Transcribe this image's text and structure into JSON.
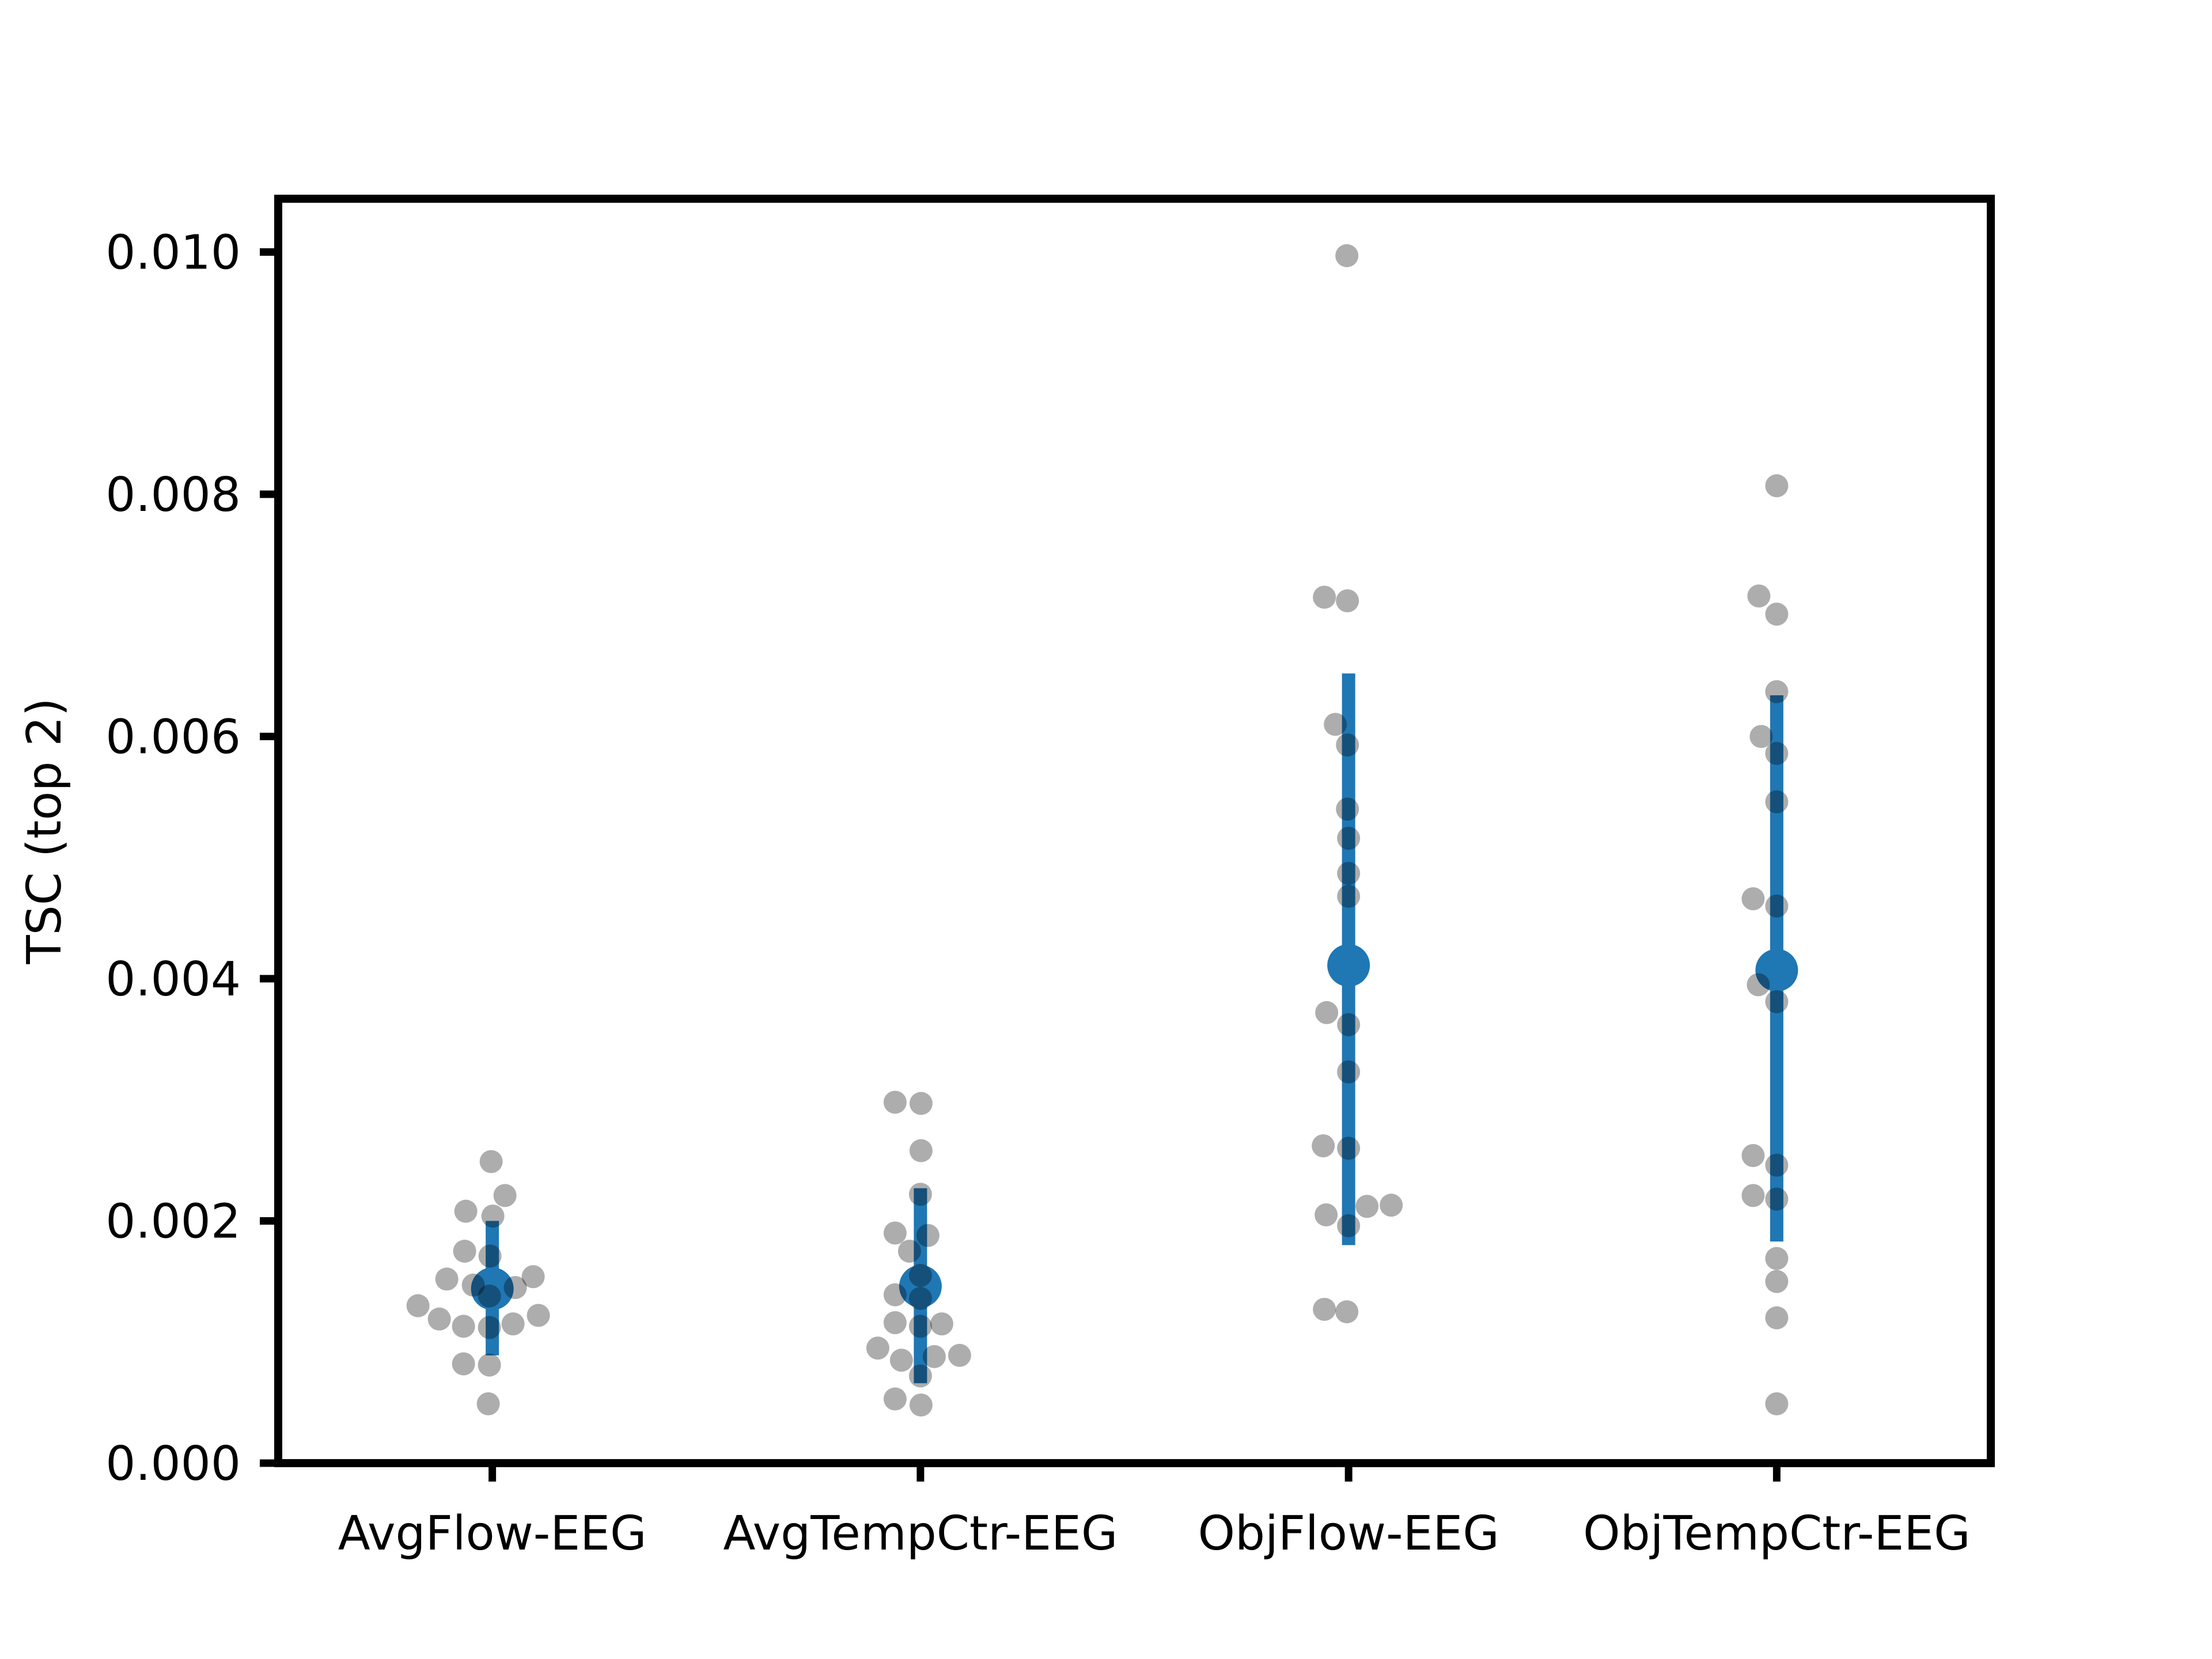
{
  "figure": {
    "background": "#ffffff"
  },
  "chart_data": {
    "type": "scatter",
    "subtype": "strip-plot-with-mean-and-ci",
    "title": "",
    "xlabel": "",
    "ylabel": "TSC (top 2)",
    "categories": [
      "AvgFlow-EEG",
      "AvgTempCtr-EEG",
      "ObjFlow-EEG",
      "ObjTempCtr-EEG"
    ],
    "ylim": [
      0,
      0.01044
    ],
    "yticks": [
      0,
      0.002,
      0.004,
      0.006,
      0.008,
      0.01
    ],
    "ytick_labels": [
      "0.000",
      "0.002",
      "0.004",
      "0.006",
      "0.008",
      "0.010"
    ],
    "grid": false,
    "legend_position": "none",
    "colors": {
      "mean_marker": "#1f77b4",
      "error_bar": "#1f77b4",
      "data_points": "#000000",
      "data_point_opacity": 0.32,
      "axis": "#000000"
    },
    "series": [
      {
        "name": "AvgFlow-EEG",
        "mean": 0.00144,
        "ci_low": 0.00089,
        "ci_high": 0.002,
        "points": [
          {
            "dx": -2,
            "y": 0.00249
          },
          {
            "dx": 22,
            "y": 0.00221
          },
          {
            "dx": -46,
            "y": 0.00208
          },
          {
            "dx": 1,
            "y": 0.00204
          },
          {
            "dx": -48,
            "y": 0.00175
          },
          {
            "dx": -4,
            "y": 0.00171
          },
          {
            "dx": 71,
            "y": 0.00154
          },
          {
            "dx": -79,
            "y": 0.00152
          },
          {
            "dx": -33,
            "y": 0.00147
          },
          {
            "dx": 40,
            "y": 0.00145
          },
          {
            "dx": -5,
            "y": 0.00138
          },
          {
            "dx": -129,
            "y": 0.0013
          },
          {
            "dx": 80,
            "y": 0.00122
          },
          {
            "dx": -92,
            "y": 0.00119
          },
          {
            "dx": 36,
            "y": 0.00115
          },
          {
            "dx": -50,
            "y": 0.00113
          },
          {
            "dx": -5,
            "y": 0.00112
          },
          {
            "dx": -50,
            "y": 0.00082
          },
          {
            "dx": -5,
            "y": 0.00081
          },
          {
            "dx": -7,
            "y": 0.00049
          }
        ]
      },
      {
        "name": "AvgTempCtr-EEG",
        "mean": 0.00146,
        "ci_low": 0.00066,
        "ci_high": 0.00227,
        "points": [
          {
            "dx": -44,
            "y": 0.00298
          },
          {
            "dx": 1,
            "y": 0.00297
          },
          {
            "dx": 1,
            "y": 0.00258
          },
          {
            "dx": 0,
            "y": 0.00222
          },
          {
            "dx": -44,
            "y": 0.0019
          },
          {
            "dx": 13,
            "y": 0.00188
          },
          {
            "dx": -19,
            "y": 0.00175
          },
          {
            "dx": 0,
            "y": 0.00155
          },
          {
            "dx": -44,
            "y": 0.00139
          },
          {
            "dx": 0,
            "y": 0.00136
          },
          {
            "dx": -44,
            "y": 0.00116
          },
          {
            "dx": 37,
            "y": 0.00115
          },
          {
            "dx": 0,
            "y": 0.00113
          },
          {
            "dx": -74,
            "y": 0.00095
          },
          {
            "dx": 68,
            "y": 0.00089
          },
          {
            "dx": 24,
            "y": 0.00088
          },
          {
            "dx": -33,
            "y": 0.00085
          },
          {
            "dx": 0,
            "y": 0.00072
          },
          {
            "dx": -44,
            "y": 0.00053
          },
          {
            "dx": 1,
            "y": 0.00048
          }
        ]
      },
      {
        "name": "ObjFlow-EEG",
        "mean": 0.00411,
        "ci_low": 0.0018,
        "ci_high": 0.00652,
        "points": [
          {
            "dx": -3,
            "y": 0.00997
          },
          {
            "dx": -42,
            "y": 0.00715
          },
          {
            "dx": -2,
            "y": 0.00712
          },
          {
            "dx": -23,
            "y": 0.0061
          },
          {
            "dx": -2,
            "y": 0.00593
          },
          {
            "dx": -2,
            "y": 0.0054
          },
          {
            "dx": 0,
            "y": 0.00516
          },
          {
            "dx": 0,
            "y": 0.00487
          },
          {
            "dx": 0,
            "y": 0.00468
          },
          {
            "dx": -38,
            "y": 0.00372
          },
          {
            "dx": 0,
            "y": 0.00362
          },
          {
            "dx": 0,
            "y": 0.00323
          },
          {
            "dx": -44,
            "y": 0.00262
          },
          {
            "dx": 0,
            "y": 0.0026
          },
          {
            "dx": 74,
            "y": 0.00213
          },
          {
            "dx": 32,
            "y": 0.00212
          },
          {
            "dx": -39,
            "y": 0.00205
          },
          {
            "dx": 0,
            "y": 0.00196
          },
          {
            "dx": -42,
            "y": 0.00127
          },
          {
            "dx": -3,
            "y": 0.00125
          }
        ]
      },
      {
        "name": "ObjTempCtr-EEG",
        "mean": 0.00407,
        "ci_low": 0.00183,
        "ci_high": 0.00634,
        "points": [
          {
            "dx": 0,
            "y": 0.00807
          },
          {
            "dx": -31,
            "y": 0.00716
          },
          {
            "dx": 0,
            "y": 0.00701
          },
          {
            "dx": 0,
            "y": 0.00637
          },
          {
            "dx": -27,
            "y": 0.006
          },
          {
            "dx": 0,
            "y": 0.00586
          },
          {
            "dx": 0,
            "y": 0.00546
          },
          {
            "dx": -41,
            "y": 0.00466
          },
          {
            "dx": 0,
            "y": 0.0046
          },
          {
            "dx": -32,
            "y": 0.00395
          },
          {
            "dx": 0,
            "y": 0.00381
          },
          {
            "dx": -41,
            "y": 0.00254
          },
          {
            "dx": 0,
            "y": 0.00246
          },
          {
            "dx": -41,
            "y": 0.00221
          },
          {
            "dx": 0,
            "y": 0.00218
          },
          {
            "dx": 0,
            "y": 0.00169
          },
          {
            "dx": 0,
            "y": 0.0015
          },
          {
            "dx": 0,
            "y": 0.0012
          },
          {
            "dx": 0,
            "y": 0.00049
          }
        ]
      }
    ]
  }
}
